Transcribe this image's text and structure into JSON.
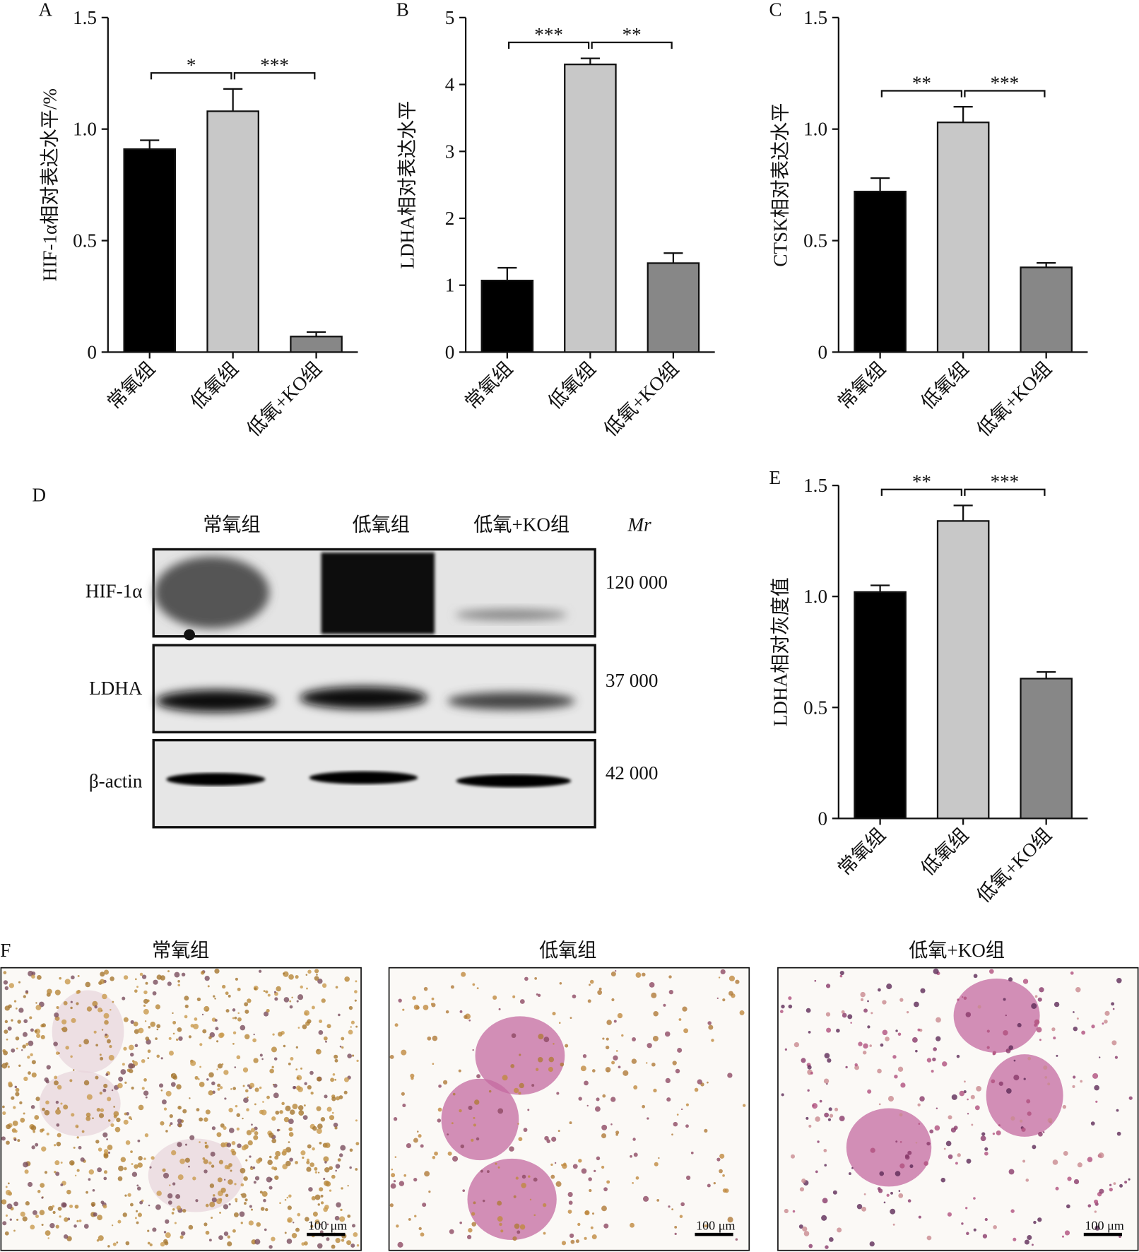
{
  "chart_data": [
    {
      "type": "bar",
      "label": "A",
      "ylabel": "HIF-1α相对表达水平/%",
      "categories": [
        "常氧组",
        "低氧组",
        "低氧+KO组"
      ],
      "values": [
        0.91,
        1.08,
        0.07
      ],
      "errors": [
        0.04,
        0.1,
        0.02
      ],
      "colors": [
        "#000000",
        "#c8c8c8",
        "#878787"
      ],
      "ylim": [
        0,
        1.5
      ],
      "yticks": [
        0,
        0.5,
        {
          "value": 1,
          "label": "1.0"
        },
        1.5
      ],
      "annotations": [
        "*",
        "***"
      ]
    },
    {
      "type": "bar",
      "label": "B",
      "ylabel": "LDHA相对表达水平",
      "categories": [
        "常氧组",
        "低氧组",
        "低氧+KO组"
      ],
      "values": [
        1.07,
        4.3,
        1.33
      ],
      "errors": [
        0.19,
        0.09,
        0.15
      ],
      "colors": [
        "#000000",
        "#c8c8c8",
        "#878787"
      ],
      "ylim": [
        0,
        5
      ],
      "yticks": [
        0,
        1,
        2,
        3,
        4,
        5
      ],
      "annotations": [
        "***",
        "**"
      ]
    },
    {
      "type": "bar",
      "label": "C",
      "ylabel": "CTSK相对表达水平",
      "categories": [
        "常氧组",
        "低氧组",
        "低氧+KO组"
      ],
      "values": [
        0.72,
        1.03,
        0.38
      ],
      "errors": [
        0.06,
        0.07,
        0.02
      ],
      "colors": [
        "#000000",
        "#c8c8c8",
        "#878787"
      ],
      "ylim": [
        0,
        1.5
      ],
      "yticks": [
        0,
        0.5,
        {
          "value": 1,
          "label": "1.0"
        },
        1.5
      ],
      "annotations": [
        "**",
        "***"
      ]
    },
    {
      "type": "bar",
      "label": "E",
      "ylabel": "LDHA相对灰度值",
      "categories": [
        "常氧组",
        "低氧组",
        "低氧+KO组"
      ],
      "values": [
        1.02,
        1.34,
        0.63
      ],
      "errors": [
        0.03,
        0.07,
        0.03
      ],
      "colors": [
        "#000000",
        "#c8c8c8",
        "#878787"
      ],
      "ylim": [
        0,
        1.5
      ],
      "yticks": [
        0,
        0.5,
        {
          "value": 1,
          "label": "1.0"
        },
        1.5
      ],
      "annotations": [
        "**",
        "***"
      ]
    }
  ],
  "blot": {
    "label": "D",
    "lanes": [
      "常氧组",
      "低氧组",
      "低氧+KO组"
    ],
    "mr_header": "Mr",
    "rows": [
      {
        "name": "HIF-1α",
        "mr": "120 000"
      },
      {
        "name": "LDHA",
        "mr": "37 000"
      },
      {
        "name": "β-actin",
        "mr": "42 000"
      }
    ]
  },
  "micrographs": {
    "label": "F",
    "panels": [
      {
        "title": "常氧组",
        "scale": "100 μm"
      },
      {
        "title": "低氧组",
        "scale": "100 μm"
      },
      {
        "title": "低氧+KO组",
        "scale": "100 μm"
      }
    ]
  }
}
